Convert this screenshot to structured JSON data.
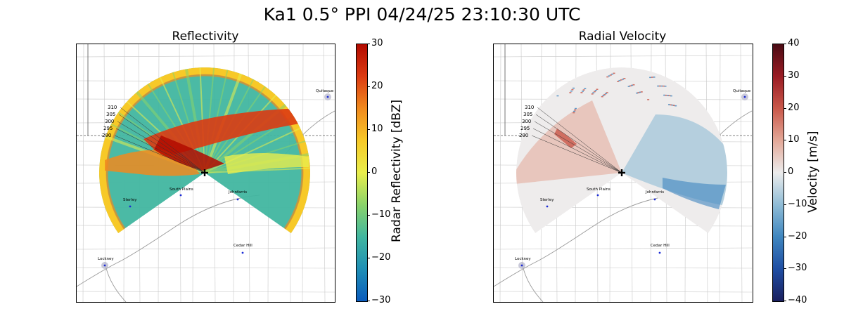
{
  "title": "Ka1 0.5° PPI 04/24/25 23:10:30 UTC",
  "chart_data": [
    {
      "type": "heatmap",
      "title": "Reflectivity",
      "colorbar_label": "Radar Reflectivity [dBZ]",
      "colorbar_range": [
        -30,
        30
      ],
      "colorbar_ticks": [
        "30",
        "20",
        "10",
        "0",
        "−10",
        "−20",
        "−30"
      ],
      "colormap": [
        "#0a5bbd",
        "#1f8fb5",
        "#41b6a0",
        "#8ad36a",
        "#e9ee4c",
        "#f7c928",
        "#f08a1e",
        "#dc3b12",
        "#b20a00"
      ],
      "towns": [
        "Quitaque",
        "South Plains",
        "Johnfarris",
        "Sterley",
        "Lockney",
        "Cedar Hill"
      ],
      "azimuth_labels": [
        "310",
        "305",
        "300",
        "295",
        "290"
      ]
    },
    {
      "type": "heatmap",
      "title": "Radial Velocity",
      "colorbar_label": "Velocity [m/s]",
      "colorbar_range": [
        -40,
        40
      ],
      "colorbar_ticks": [
        "40",
        "30",
        "20",
        "10",
        "0",
        "−10",
        "−20",
        "−30",
        "−40"
      ],
      "colormap": [
        "#1a1f5e",
        "#1f4ea3",
        "#3f86bf",
        "#8fbcd6",
        "#ececec",
        "#e3a898",
        "#c9584a",
        "#9a1c24",
        "#4a0b14"
      ],
      "towns": [
        "Quitaque",
        "South Plains",
        "Johnfarris",
        "Sterley",
        "Lockney",
        "Cedar Hill"
      ],
      "azimuth_labels": [
        "310",
        "305",
        "300",
        "295",
        "290"
      ]
    }
  ]
}
